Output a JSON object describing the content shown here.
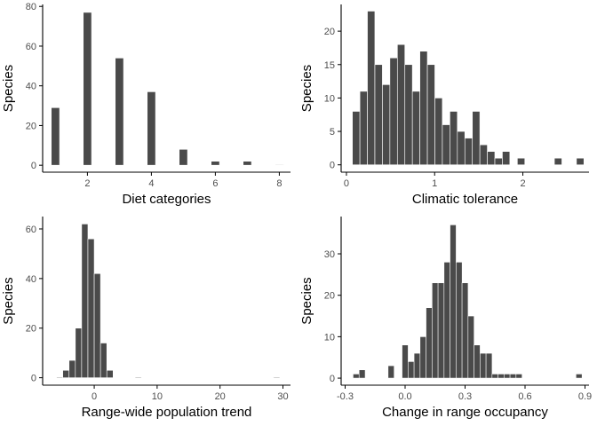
{
  "colors": {
    "bar": "#4a4a4a",
    "bar_outline": "#ffffff",
    "axis": "#000000",
    "tick_text": "#4d4d4d",
    "background": "#ffffff"
  },
  "chart_data": [
    {
      "id": "diet",
      "type": "bar",
      "xlabel": "Diet categories",
      "ylabel": "Species",
      "xlim": [
        0.6,
        8.35
      ],
      "ylim": [
        -3.5,
        81
      ],
      "xticks": [
        2,
        4,
        6,
        8
      ],
      "xtick_labels": [
        "2",
        "4",
        "6",
        "8"
      ],
      "yticks": [
        0,
        20,
        40,
        60,
        80
      ],
      "ytick_labels": [
        "0",
        "20",
        "40",
        "60",
        "80"
      ],
      "bin_width": 0.26,
      "x": [
        1,
        2,
        3,
        4,
        5,
        6,
        7,
        8
      ],
      "values": [
        29,
        77,
        54,
        37,
        8,
        2,
        2,
        0.3
      ],
      "grid": false
    },
    {
      "id": "climatic",
      "type": "bar",
      "xlabel": "Climatic tolerance",
      "ylabel": "Species",
      "xlim": [
        -0.06,
        2.75
      ],
      "ylim": [
        -1.1,
        24
      ],
      "xticks": [
        0,
        1,
        2
      ],
      "xtick_labels": [
        "0",
        "1",
        "2"
      ],
      "yticks": [
        0,
        5,
        10,
        15,
        20
      ],
      "ytick_labels": [
        "0",
        "5",
        "10",
        "15",
        "20"
      ],
      "bin_width": 0.0845,
      "x": [
        0.11,
        0.195,
        0.28,
        0.365,
        0.45,
        0.535,
        0.62,
        0.705,
        0.79,
        0.875,
        0.96,
        1.045,
        1.13,
        1.215,
        1.3,
        1.385,
        1.47,
        1.555,
        1.64,
        1.725,
        1.81,
        1.98,
        2.4,
        2.65
      ],
      "values": [
        8,
        11,
        23,
        15,
        12,
        16,
        18,
        15,
        11,
        17,
        15,
        10,
        6,
        8,
        5,
        4,
        8,
        3,
        2,
        1,
        2,
        1,
        1,
        1
      ],
      "grid": false
    },
    {
      "id": "trend",
      "type": "bar",
      "xlabel": "Range-wide population trend",
      "ylabel": "Species",
      "xlim": [
        -8.2,
        31.2
      ],
      "ylim": [
        -3,
        65
      ],
      "xticks": [
        0,
        10,
        20,
        30
      ],
      "xtick_labels": [
        "0",
        "10",
        "20",
        "30"
      ],
      "yticks": [
        0,
        20,
        40,
        60
      ],
      "yticks_labels_note": "",
      "ytick_labels": [
        "0",
        "20",
        "40",
        "60"
      ],
      "bin_width": 1.0,
      "x": [
        -5.5,
        -4.5,
        -3.5,
        -2.5,
        -1.5,
        -0.5,
        0.5,
        1.5,
        2.5,
        3.5,
        7.0,
        29.0
      ],
      "values": [
        0.3,
        3,
        7,
        20,
        62,
        56,
        42,
        14,
        3,
        0,
        0.3,
        0.3
      ],
      "grid": false
    },
    {
      "id": "occupancy",
      "type": "bar",
      "xlabel": "Change in range occupancy",
      "ylabel": "Species",
      "xlim": [
        -0.32,
        0.92
      ],
      "ylim": [
        -1.7,
        39
      ],
      "xticks": [
        -0.3,
        0.0,
        0.3,
        0.6,
        0.9
      ],
      "xtick_labels": [
        "-0.3",
        "0.0",
        "0.3",
        "0.6",
        "0.9"
      ],
      "yticks": [
        0,
        10,
        20,
        30
      ],
      "ytick_labels": [
        "0",
        "10",
        "20",
        "30"
      ],
      "bin_width": 0.0305,
      "x": [
        -0.245,
        -0.215,
        -0.07,
        0.0,
        0.03,
        0.06,
        0.09,
        0.12,
        0.15,
        0.18,
        0.21,
        0.24,
        0.27,
        0.3,
        0.33,
        0.36,
        0.39,
        0.42,
        0.45,
        0.48,
        0.51,
        0.54,
        0.57,
        0.87
      ],
      "values": [
        1,
        2,
        3,
        8,
        4,
        6,
        10,
        17,
        23,
        23,
        28,
        37,
        28,
        23,
        15,
        8,
        6,
        6,
        1,
        1,
        1,
        1,
        1,
        1
      ],
      "grid": false
    }
  ]
}
